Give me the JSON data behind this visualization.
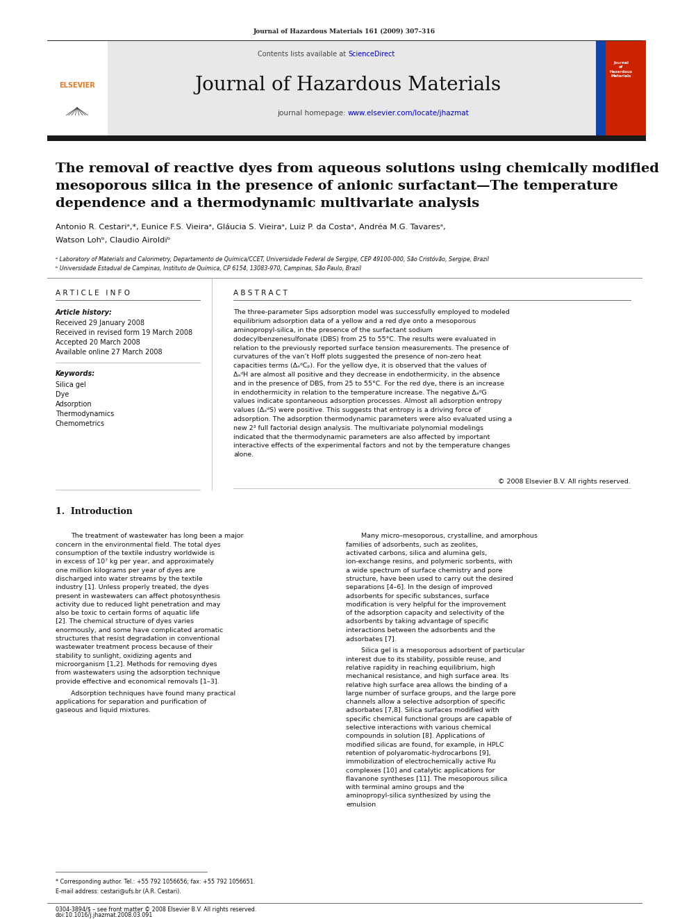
{
  "page_width": 9.92,
  "page_height": 13.23,
  "bg_color": "#ffffff",
  "journal_ref": "Journal of Hazardous Materials 161 (2009) 307–316",
  "contents_text": "Contents lists available at ",
  "sciencedirect_text": "ScienceDirect",
  "journal_name": "Journal of Hazardous Materials",
  "homepage_text": "journal homepage: ",
  "homepage_url": "www.elsevier.com/locate/jhazmat",
  "header_bg": "#e8e8e8",
  "thick_bar_color": "#1a1a1a",
  "title_line1": "The removal of reactive dyes from aqueous solutions using chemically modified",
  "title_line2": "mesoporous silica in the presence of anionic surfactant—The temperature",
  "title_line3": "dependence and a thermodynamic multivariate analysis",
  "authors": "Antonio R. Cestariᵃ,*, Eunice F.S. Vieiraᵃ, Gláucia S. Vieiraᵃ, Luiz P. da Costaᵃ, Andréa M.G. Tavaresᵃ,",
  "authors2": "Watson Lohᵇ, Claudio Airoldiᵇ",
  "affil_a": "ᵃ Laboratory of Materials and Calorimetry, Departamento de Química/CCET, Universidade Federal de Sergipe, CEP 49100-000, São Cristóvão, Sergipe, Brazil",
  "affil_b": "ᵇ Universidade Estadual de Campinas, Instituto de Química, CP 6154, 13083-970, Campinas, São Paulo, Brazil",
  "article_info_header": "A R T I C L E   I N F O",
  "abstract_header": "A B S T R A C T",
  "article_history_label": "Article history:",
  "received": "Received 29 January 2008",
  "received_revised": "Received in revised form 19 March 2008",
  "accepted": "Accepted 20 March 2008",
  "available": "Available online 27 March 2008",
  "keywords_label": "Keywords:",
  "keywords": [
    "Silica gel",
    "Dye",
    "Adsorption",
    "Thermodynamics",
    "Chemometrics"
  ],
  "abstract_text": "The three-parameter Sips adsorption model was successfully employed to modeled equilibrium adsorption data of a yellow and a red dye onto a mesoporous aminopropyl-silica, in the presence of the surfactant sodium dodecylbenzenesulfonate (DBS) from 25 to 55°C. The results were evaluated in relation to the previously reported surface tension measurements. The presence of curvatures of the van’t Hoff plots suggested the presence of non-zero heat capacities terms (ΔₐᵈCₚ). For the yellow dye, it is observed that the values of ΔₐᵈH are almost all positive and they decrease in endothermicity, in the absence and in the presence of DBS, from 25 to 55°C. For the red dye, there is an increase in endothermicity in relation to the temperature increase. The negative ΔₐᵈG values indicate spontaneous adsorption processes. Almost all adsorption entropy values (ΔₐᵈS) were positive. This suggests that entropy is a driving force of adsorption. The adsorption thermodynamic parameters were also evaluated using a new 2³ full factorial design analysis. The multivariate polynomial modelings indicated that the thermodynamic parameters are also affected by important interactive effects of the experimental factors and not by the temperature changes alone.",
  "copyright": "© 2008 Elsevier B.V. All rights reserved.",
  "intro_heading": "1.  Introduction",
  "intro_col1_p1": "The treatment of wastewater has long been a major concern in the environmental field. The total dyes consumption of the textile industry worldwide is in excess of 10⁷ kg per year, and approximately one million kilograms per year of dyes are discharged into water streams by the textile industry [1]. Unless properly treated, the dyes present in wastewaters can affect photosynthesis activity due to reduced light penetration and may also be toxic to certain forms of aquatic life [2]. The chemical structure of dyes varies enormously, and some have complicated aromatic structures that resist degradation in conventional wastewater treatment process because of their stability to sunlight, oxidizing agents and microorganism [1,2]. Methods for removing dyes from wastewaters using the adsorption technique provide effective and economical removals [1–3].",
  "intro_col1_p2": "Adsorption techniques have found many practical applications for separation and purification of gaseous and liquid mixtures.",
  "intro_col2_p1": "Many micro–mesoporous, crystalline, and amorphous families of adsorbents, such as zeolites, activated carbons, silica and alumina gels, ion-exchange resins, and polymeric sorbents, with a wide spectrum of surface chemistry and pore structure, have been used to carry out the desired separations [4–6]. In the design of improved adsorbents for specific substances, surface modification is very helpful for the improvement of the adsorption capacity and selectivity of the adsorbents by taking advantage of specific interactions between the adsorbents and the adsorbates [7].",
  "intro_col2_p2": "Silica gel is a mesoporous adsorbent of particular interest due to its stability, possible reuse, and relative rapidity in reaching equilibrium, high mechanical resistance, and high surface area. Its relative high surface area allows the binding of a large number of surface groups, and the large pore channels allow a selective adsorption of specific adsorbates [7,8]. Silica surfaces modified with specific chemical functional groups are capable of selective interactions with various chemical compounds in solution [8]. Applications of modified silicas are found, for example, in HPLC retention of polyaromatic-hydrocarbons [9], immobilization of electrochemically active Ru complexes [10] and catalytic applications for flavanone syntheses [11]. The mesoporous silica with terminal amino groups and the aminopropyl-silica synthesized by using the emulsion",
  "footnote_star": "* Corresponding author. Tel.: +55 792 1056656; fax: +55 792 1056651.",
  "footnote_email": "E-mail address: cestari@ufs.br (A.R. Cestari).",
  "bottom_text": "0304-3894/$ – see front matter © 2008 Elsevier B.V. All rights reserved.",
  "doi_text": "doi:10.1016/j.jhazmat.2008.03.091",
  "link_color": "#0000cc",
  "header_line_color": "#333333",
  "elsevier_orange": "#e87722"
}
